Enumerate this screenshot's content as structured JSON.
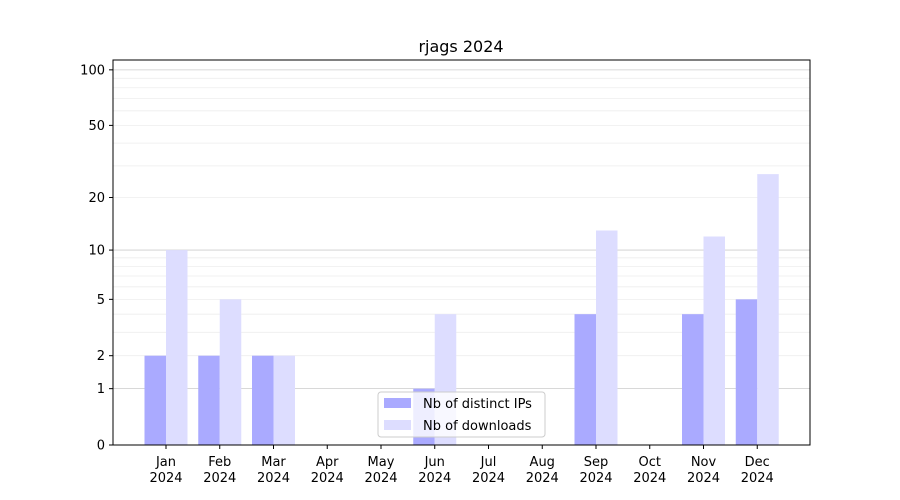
{
  "chart_data": {
    "type": "bar",
    "title": "rjags 2024",
    "xlabel": "",
    "ylabel": "",
    "yscale": "log1p",
    "ylim": [
      0,
      113
    ],
    "yticks": [
      0,
      1,
      2,
      5,
      10,
      20,
      50,
      100
    ],
    "categories": [
      [
        "Jan",
        "2024"
      ],
      [
        "Feb",
        "2024"
      ],
      [
        "Mar",
        "2024"
      ],
      [
        "Apr",
        "2024"
      ],
      [
        "May",
        "2024"
      ],
      [
        "Jun",
        "2024"
      ],
      [
        "Jul",
        "2024"
      ],
      [
        "Aug",
        "2024"
      ],
      [
        "Sep",
        "2024"
      ],
      [
        "Oct",
        "2024"
      ],
      [
        "Nov",
        "2024"
      ],
      [
        "Dec",
        "2024"
      ]
    ],
    "series": [
      {
        "name": "Nb of distinct IPs",
        "color": "#aaaaff",
        "values": [
          2,
          2,
          2,
          0,
          0,
          1,
          0,
          0,
          4,
          0,
          4,
          5
        ]
      },
      {
        "name": "Nb of downloads",
        "color": "#ddddff",
        "values": [
          10,
          5,
          2,
          0,
          0,
          4,
          0,
          0,
          13,
          0,
          12,
          27
        ]
      }
    ],
    "legend_position": "lower-center",
    "grid": true
  }
}
